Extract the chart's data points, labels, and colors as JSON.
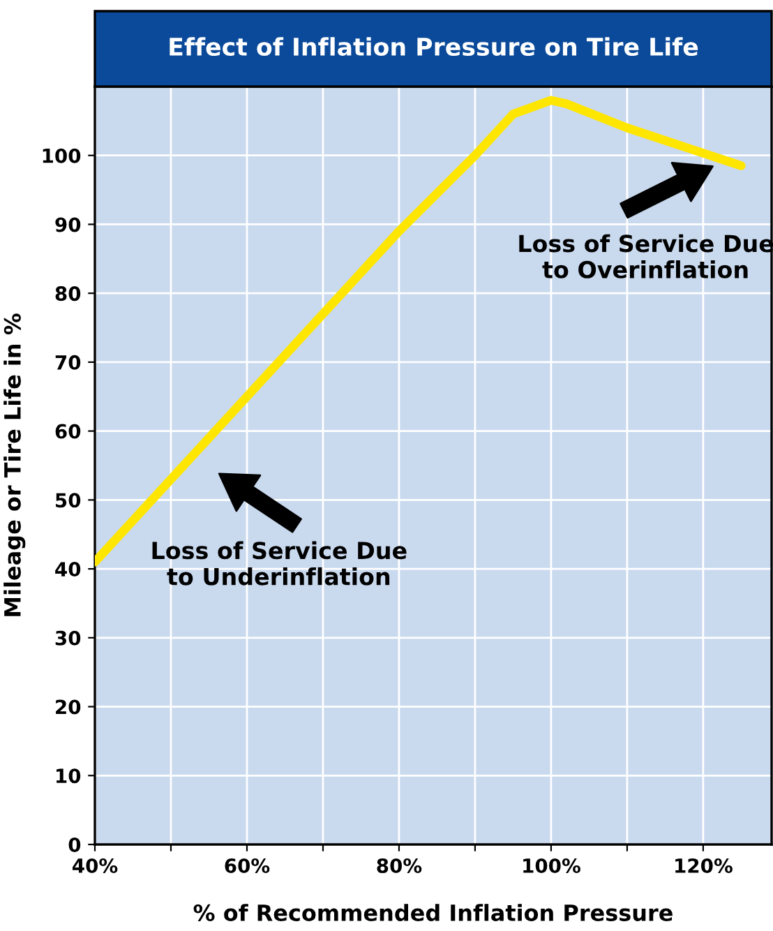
{
  "chart_data": {
    "type": "line",
    "title": "Effect of Inflation Pressure on Tire Life",
    "xlabel": "% of Recommended Inflation Pressure",
    "ylabel": "Mileage or Tire Life in %",
    "x": [
      40,
      50,
      60,
      70,
      80,
      90,
      95,
      100,
      102,
      110,
      125
    ],
    "series": [
      {
        "color": "#ffe600",
        "values": [
          41,
          53,
          65,
          77,
          89,
          100,
          106,
          108,
          107.5,
          104,
          98.5
        ]
      }
    ],
    "xlim": [
      40,
      129
    ],
    "ylim": [
      0,
      110
    ],
    "xticks": [
      {
        "value": 40,
        "label": "40%"
      },
      {
        "value": 50,
        "label": null
      },
      {
        "value": 60,
        "label": "60%"
      },
      {
        "value": 70,
        "label": null
      },
      {
        "value": 80,
        "label": "80%"
      },
      {
        "value": 90,
        "label": null
      },
      {
        "value": 100,
        "label": "100%"
      },
      {
        "value": 110,
        "label": null
      },
      {
        "value": 120,
        "label": "120%"
      }
    ],
    "yticks": [
      0,
      10,
      20,
      30,
      40,
      50,
      60,
      70,
      80,
      90,
      100
    ],
    "grid": true,
    "marker": "none",
    "line_style": "solid",
    "annotations": [
      "Loss of Service Due\nto Underinflation",
      "Loss of Service Due\nto Overinflation"
    ]
  }
}
